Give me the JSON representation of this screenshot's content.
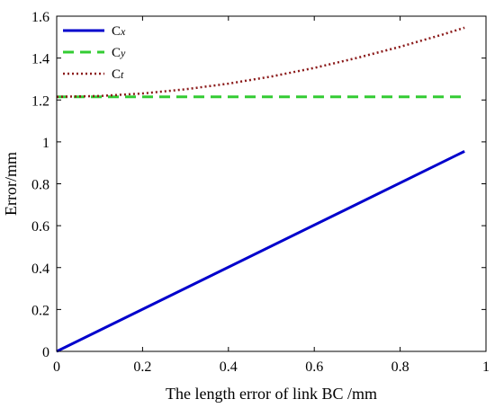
{
  "chart_data": {
    "type": "line",
    "xlabel": "The length error  of link BC /mm",
    "ylabel": "Error/mm",
    "xlim": [
      0,
      1
    ],
    "ylim": [
      0,
      1.6
    ],
    "xticks": [
      0,
      0.2,
      0.4,
      0.6,
      0.8,
      1
    ],
    "xtick_labels": [
      "0",
      "0.2",
      "0.4",
      "0.6",
      "0.8",
      "1"
    ],
    "yticks": [
      0,
      0.2,
      0.4,
      0.6,
      0.8,
      1,
      1.2,
      1.4,
      1.6
    ],
    "ytick_labels": [
      "0",
      "0.2",
      "0.4",
      "0.6",
      "0.8",
      "1",
      "1.2",
      "1.4",
      "1.6"
    ],
    "grid": false,
    "legend_position": "top-left",
    "series": [
      {
        "name": "Cx",
        "label_main": "C",
        "label_sub": "x",
        "color": "#0000cc",
        "style": "solid",
        "x": [
          0,
          0.95
        ],
        "y": [
          0,
          0.955
        ]
      },
      {
        "name": "Cy",
        "label_main": "C",
        "label_sub": "y",
        "color": "#33cc33",
        "style": "dashed",
        "x": [
          0,
          0.95
        ],
        "y": [
          1.215,
          1.215
        ]
      },
      {
        "name": "Ct",
        "label_main": "C",
        "label_sub": "t",
        "color": "#8b1a1a",
        "style": "dotted",
        "x": [
          0,
          0.1,
          0.2,
          0.3,
          0.4,
          0.5,
          0.6,
          0.7,
          0.8,
          0.9,
          0.95
        ],
        "y": [
          1.215,
          1.219,
          1.231,
          1.251,
          1.278,
          1.312,
          1.353,
          1.401,
          1.454,
          1.513,
          1.545
        ]
      }
    ]
  }
}
